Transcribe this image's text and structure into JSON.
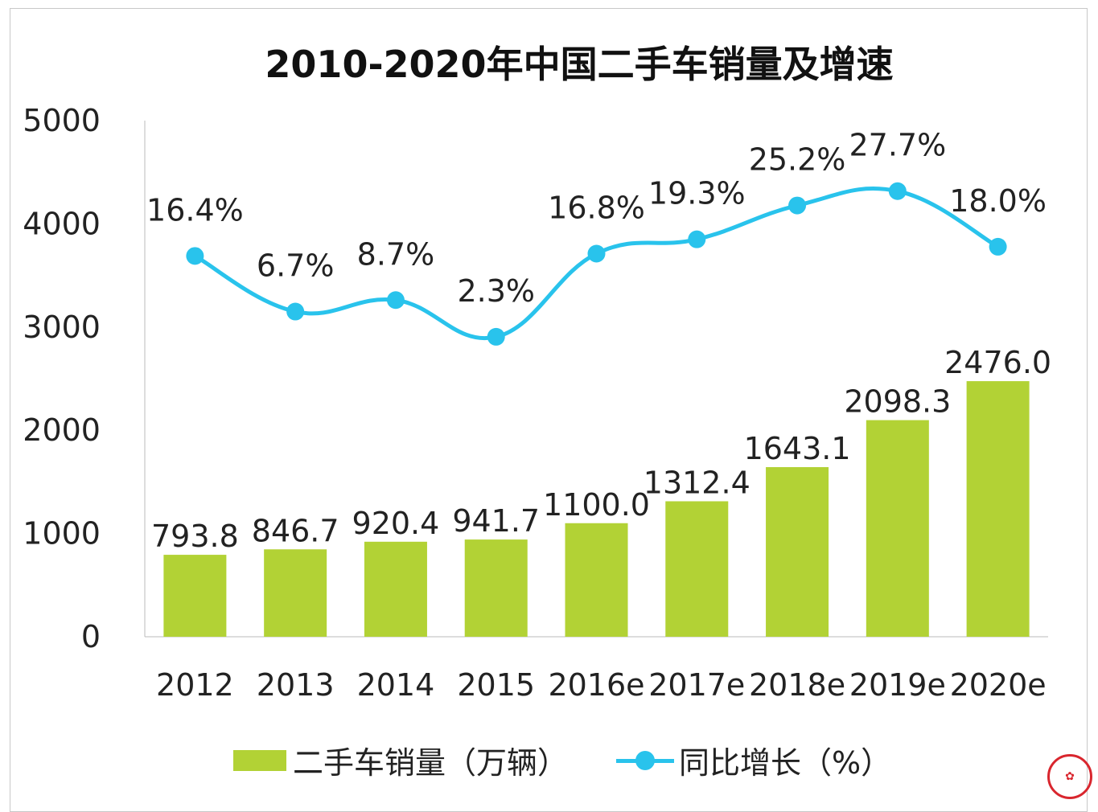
{
  "chart_data": {
    "type": "bar+line",
    "title": "2010-2020年中国二手车销量及增速",
    "categories": [
      "2012",
      "2013",
      "2014",
      "2015",
      "2016e",
      "2017e",
      "2018e",
      "2019e",
      "2020e"
    ],
    "series": [
      {
        "name": "二手车销量（万辆）",
        "type": "bar",
        "axis": "primary",
        "color": "#b2d235",
        "values": [
          793.8,
          846.7,
          920.4,
          941.7,
          1100.0,
          1312.4,
          1643.1,
          2098.3,
          2476.0
        ],
        "labels": [
          "793.8",
          "846.7",
          "920.4",
          "941.7",
          "1100.0",
          "1312.4",
          "1643.1",
          "2098.3",
          "2476.0"
        ]
      },
      {
        "name": "同比增长（%）",
        "type": "line",
        "axis": "secondary",
        "color": "#29c3ec",
        "values": [
          16.4,
          6.7,
          8.7,
          2.3,
          16.8,
          19.3,
          25.2,
          27.7,
          18.0
        ],
        "labels": [
          "16.4%",
          "6.7%",
          "8.7%",
          "2.3%",
          "16.8%",
          "19.3%",
          "25.2%",
          "27.7%",
          "18.0%"
        ]
      }
    ],
    "ylim": [
      0,
      5000
    ],
    "y2lim": [
      -50,
      40
    ],
    "yticks": [
      "0",
      "1000",
      "2000",
      "3000",
      "4000",
      "5000"
    ],
    "legend": "bottom",
    "grid": false
  },
  "watermark": "logo"
}
